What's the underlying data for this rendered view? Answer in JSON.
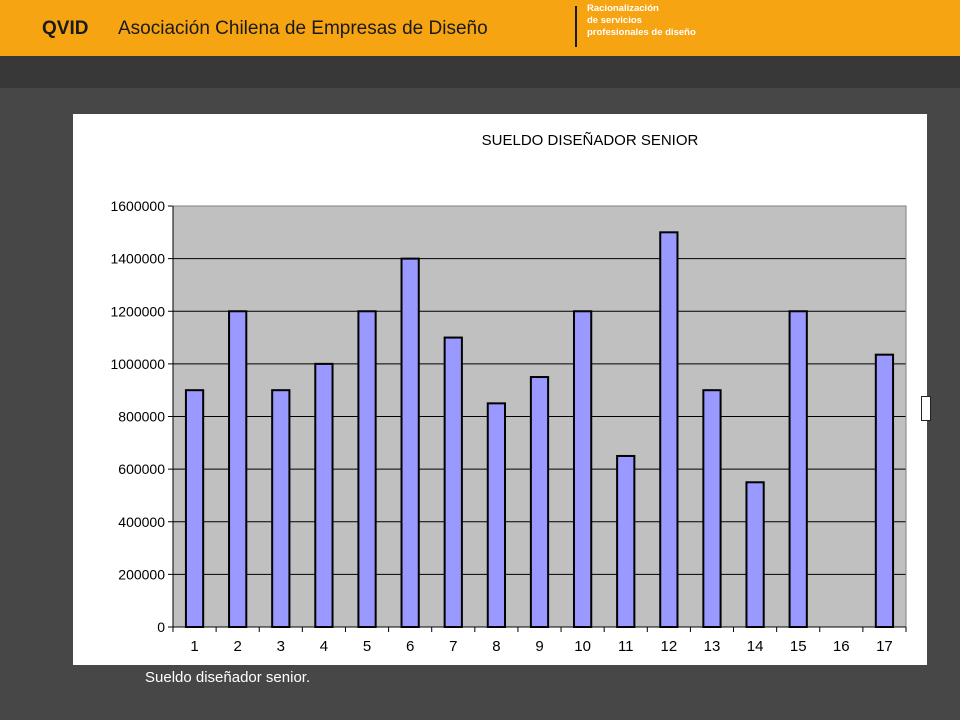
{
  "header": {
    "brand": "QVID",
    "organization": "Asociación Chilena de Empresas de Diseño",
    "tagline": [
      "Racionalización",
      "de servicios",
      "profesionales de diseño"
    ]
  },
  "caption": "Sueldo diseñador senior.",
  "colors": {
    "header_bg": "#f6a412",
    "page_bg": "#474747",
    "plot_bg": "#c0c0c0",
    "bar_fill": "#9999ff"
  },
  "chart_data": {
    "type": "bar",
    "title": "SUELDO DISEÑADOR SENIOR",
    "xlabel": "",
    "ylabel": "",
    "categories": [
      "1",
      "2",
      "3",
      "4",
      "5",
      "6",
      "7",
      "8",
      "9",
      "10",
      "11",
      "12",
      "13",
      "14",
      "15",
      "16",
      "17"
    ],
    "values": [
      900000,
      1200000,
      900000,
      1000000,
      1200000,
      1400000,
      1100000,
      850000,
      950000,
      1200000,
      650000,
      1500000,
      900000,
      550000,
      1200000,
      0,
      1035000
    ],
    "ylim": [
      0,
      1600000
    ],
    "yticks": [
      "0",
      "200000",
      "400000",
      "600000",
      "800000",
      "1000000",
      "1200000",
      "1400000",
      "1600000"
    ],
    "grid": true,
    "legend": "none"
  }
}
